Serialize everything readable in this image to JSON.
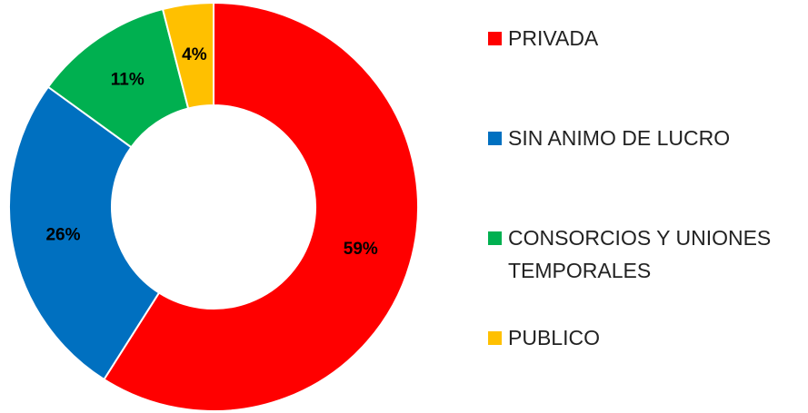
{
  "chart_data": {
    "type": "donut",
    "categories": [
      "PRIVADA",
      "SIN ANIMO DE LUCRO",
      "CONSORCIOS Y UNIONES TEMPORALES",
      "PUBLICO"
    ],
    "values": [
      59,
      26,
      11,
      4
    ],
    "value_labels": [
      "59%",
      "26%",
      "11%",
      "4%"
    ],
    "colors": [
      "#ff0000",
      "#0070c0",
      "#00b050",
      "#ffc000"
    ],
    "legend": "right"
  }
}
